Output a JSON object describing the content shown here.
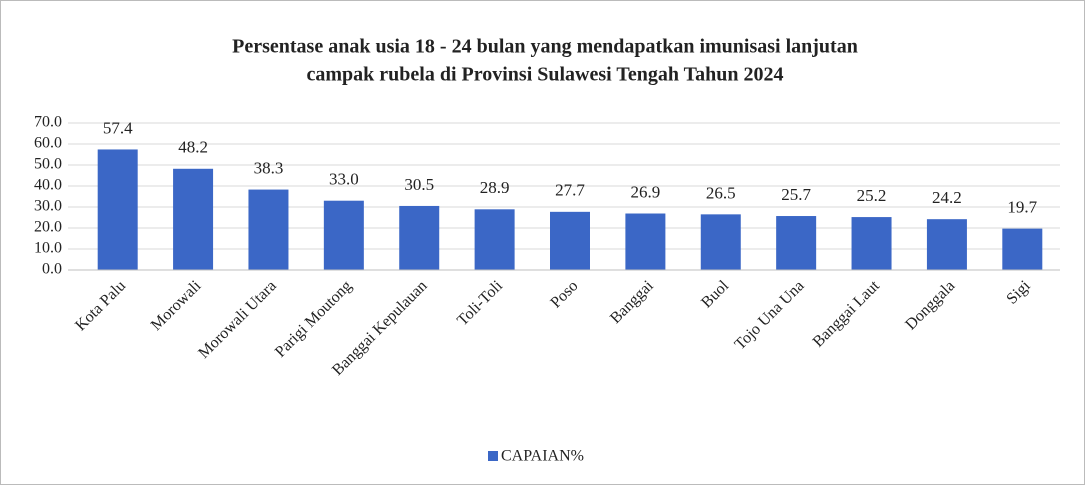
{
  "chart_data": {
    "type": "bar",
    "title": [
      "Persentase anak usia 18 - 24 bulan yang mendapatkan imunisasi lanjutan",
      "campak rubela di Provinsi Sulawesi Tengah Tahun 2024"
    ],
    "categories": [
      "Kota Palu",
      "Morowali",
      "Morowali Utara",
      "Parigi Moutong",
      "Banggai Kepulauan",
      "Toli-Toli",
      "Poso",
      "Banggai",
      "Buol",
      "Tojo Una Una",
      "Banggai Laut",
      "Donggala",
      "Sigi"
    ],
    "series": [
      {
        "name": "CAPAIAN%",
        "color": "#3b67c6",
        "values": [
          57.4,
          48.2,
          38.3,
          33.0,
          30.5,
          28.9,
          27.7,
          26.9,
          26.5,
          25.7,
          25.2,
          24.2,
          19.7
        ],
        "value_labels": [
          "57.4",
          "48.2",
          "38.3",
          "33.0",
          "30.5",
          "28.9",
          "27.7",
          "26.9",
          "26.5",
          "25.7",
          "25.2",
          "24.2",
          "19.7"
        ]
      }
    ],
    "ylim": [
      0,
      70
    ],
    "yticks": [
      {
        "value": 0,
        "label": "0.0"
      },
      {
        "value": 10,
        "label": "10.0"
      },
      {
        "value": 20,
        "label": "20.0"
      },
      {
        "value": 30,
        "label": "30.0"
      },
      {
        "value": 40,
        "label": "40.0"
      },
      {
        "value": 50,
        "label": "50.0"
      },
      {
        "value": 60,
        "label": "60.0"
      },
      {
        "value": 70,
        "label": "70.0"
      }
    ],
    "grid": true,
    "legend": "bottom"
  }
}
